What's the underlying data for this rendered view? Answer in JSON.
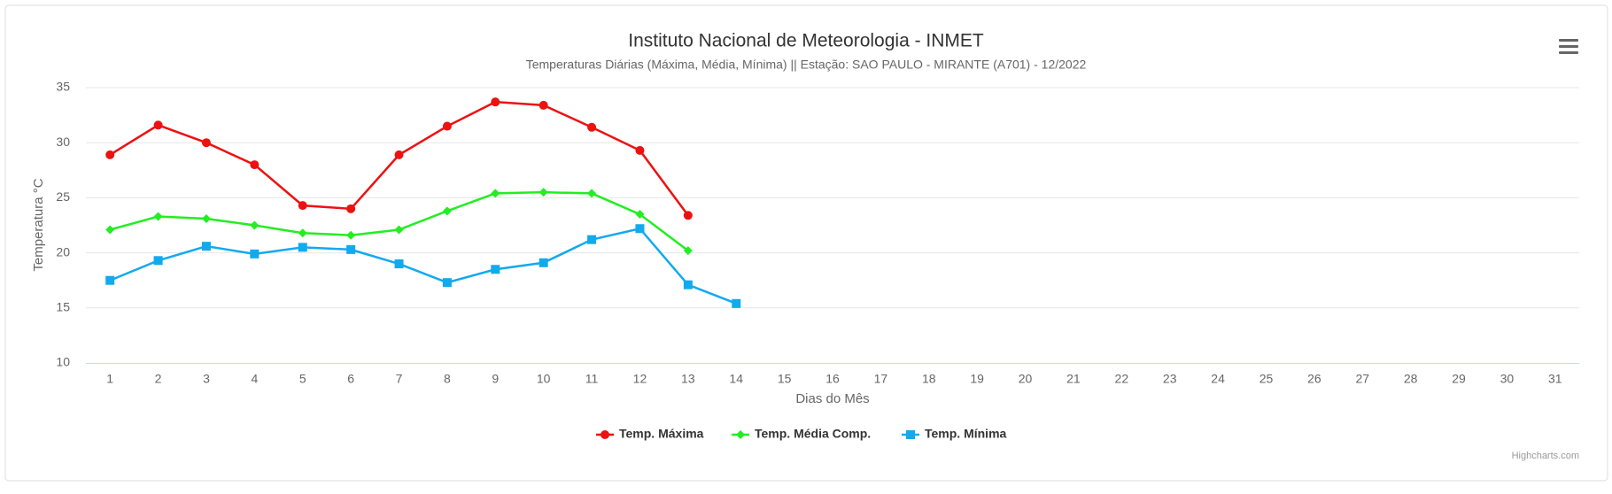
{
  "chart_data": {
    "type": "line",
    "title": "Instituto Nacional de Meteorologia - INMET",
    "subtitle": "Temperaturas Diárias (Máxima, Média, Mínima) || Estação: SAO PAULO - MIRANTE (A701) - 12/2022",
    "x_label": "Dias do Mês",
    "y_label": "Temperatura °C",
    "credits": "Highcharts.com",
    "categories": [
      "1",
      "2",
      "3",
      "4",
      "5",
      "6",
      "7",
      "8",
      "9",
      "10",
      "11",
      "12",
      "13",
      "14",
      "15",
      "16",
      "17",
      "18",
      "19",
      "20",
      "21",
      "22",
      "23",
      "24",
      "25",
      "26",
      "27",
      "28",
      "29",
      "30",
      "31"
    ],
    "series": [
      {
        "name": "Temp. Máxima",
        "color": "#ee1111",
        "marker": "circle",
        "values": [
          28.9,
          31.6,
          30.0,
          28.0,
          24.3,
          24.0,
          28.9,
          31.5,
          33.7,
          33.4,
          31.4,
          29.3,
          23.4,
          null,
          null,
          null,
          null,
          null,
          null,
          null,
          null,
          null,
          null,
          null,
          null,
          null,
          null,
          null,
          null,
          null,
          null
        ]
      },
      {
        "name": "Temp. Média Comp.",
        "color": "#22ee22",
        "marker": "diamond",
        "values": [
          22.1,
          23.3,
          23.1,
          22.5,
          21.8,
          21.6,
          22.1,
          23.8,
          25.4,
          25.5,
          25.4,
          23.5,
          20.2,
          null,
          null,
          null,
          null,
          null,
          null,
          null,
          null,
          null,
          null,
          null,
          null,
          null,
          null,
          null,
          null,
          null,
          null
        ]
      },
      {
        "name": "Temp. Mínima",
        "color": "#11aaee",
        "marker": "square",
        "values": [
          17.5,
          19.3,
          20.6,
          19.9,
          20.5,
          20.3,
          19.0,
          17.3,
          18.5,
          19.1,
          21.2,
          22.2,
          17.1,
          15.4,
          null,
          null,
          null,
          null,
          null,
          null,
          null,
          null,
          null,
          null,
          null,
          null,
          null,
          null,
          null,
          null,
          null
        ]
      }
    ],
    "ylim": [
      10,
      35
    ],
    "yticks": [
      10,
      15,
      20,
      25,
      30,
      35
    ],
    "grid": true
  }
}
